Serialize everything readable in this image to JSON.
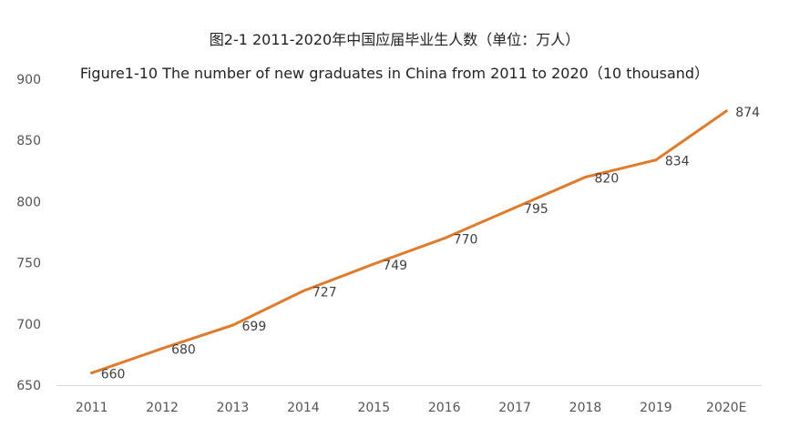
{
  "chart_data": {
    "type": "line",
    "title": "图2-1 2011-2020年中国应届毕业生人数（单位：万人）",
    "subtitle": "Figure1-10 The number of new graduates in China from 2011 to 2020（10 thousand）",
    "xlabel": "",
    "ylabel": "",
    "categories": [
      "2011",
      "2012",
      "2013",
      "2014",
      "2015",
      "2016",
      "2017",
      "2018",
      "2019",
      "2020E"
    ],
    "series": [
      {
        "values": [
          660,
          680,
          699,
          727,
          749,
          770,
          795,
          820,
          834,
          874
        ],
        "color": "#E07B2C"
      }
    ],
    "ylim": [
      650,
      900
    ],
    "yticks": [
      "650",
      "700",
      "750",
      "800",
      "850",
      "900"
    ],
    "grid": false,
    "legend": "none"
  }
}
